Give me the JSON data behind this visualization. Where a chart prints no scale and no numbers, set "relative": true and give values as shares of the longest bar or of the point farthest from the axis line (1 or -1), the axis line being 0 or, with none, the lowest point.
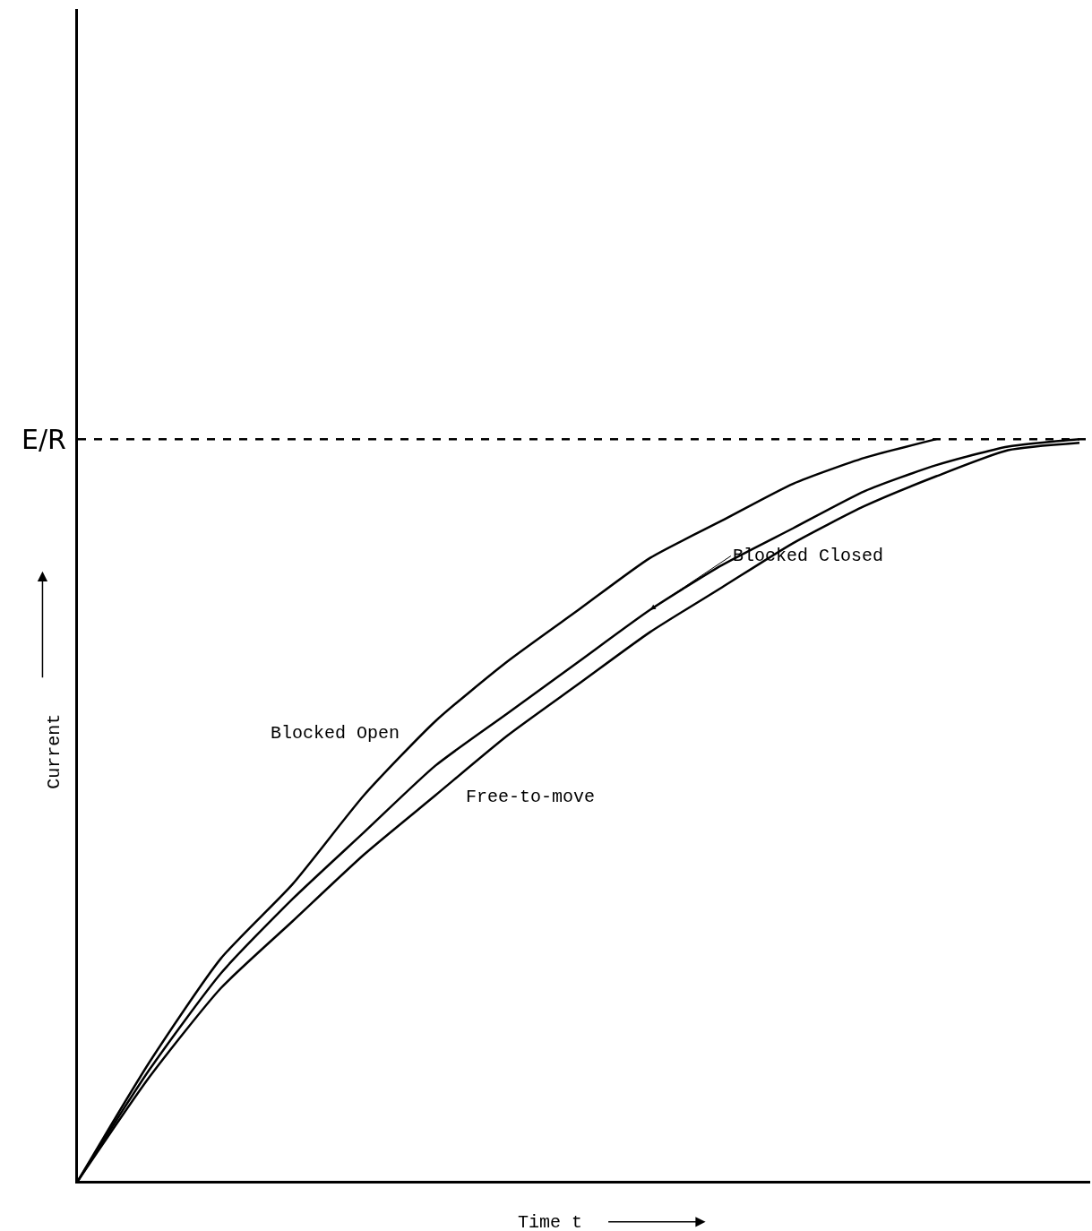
{
  "chart_data": {
    "type": "line",
    "relative": true,
    "xlabel": "Time t",
    "ylabel": "Current",
    "categories": [
      null,
      null,
      null,
      null,
      null,
      null,
      null,
      null,
      null,
      null,
      null,
      null,
      null,
      null,
      null
    ],
    "series": [
      {
        "name": "Blocked Open",
        "color": "#000000",
        "values": [
          0,
          0.16,
          0.3,
          0.4,
          0.52,
          0.62,
          0.7,
          0.77,
          0.84,
          0.89,
          0.94,
          0.975,
          1,
          null,
          null
        ]
      },
      {
        "name": "Blocked Closed",
        "color": "#000000",
        "values": [
          0,
          0.15,
          0.28,
          0.38,
          0.47,
          0.56,
          0.63,
          0.7,
          0.77,
          0.83,
          0.88,
          0.93,
          0.965,
          0.99,
          1
        ]
      },
      {
        "name": "Free-to-move",
        "color": "#000000",
        "values": [
          0,
          0.14,
          0.26,
          0.35,
          0.44,
          0.52,
          0.6,
          0.67,
          0.74,
          0.8,
          0.86,
          0.91,
          0.95,
          0.985,
          0.995
        ]
      }
    ],
    "ref_lines": [
      {
        "axis": "y",
        "value": 1,
        "label": "E/R",
        "color": "#000000",
        "line_style": "dashed"
      }
    ],
    "line_style": "solid",
    "marker": "none"
  }
}
